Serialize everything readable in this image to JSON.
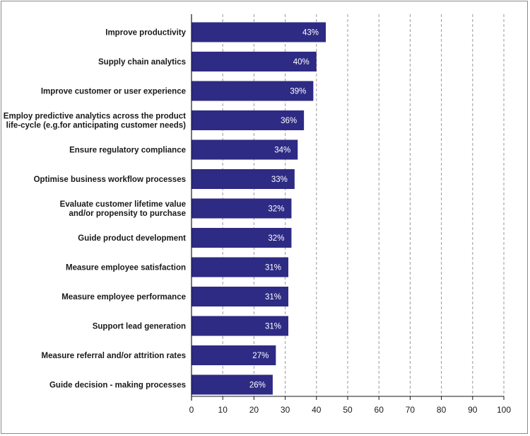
{
  "chart_data": {
    "type": "bar",
    "orientation": "horizontal",
    "title": "",
    "xlabel": "",
    "ylabel": "",
    "xlim": [
      0,
      100
    ],
    "x_ticks": [
      0,
      10,
      20,
      30,
      40,
      50,
      60,
      70,
      80,
      90,
      100
    ],
    "grid": "vertical dashed",
    "bar_color": "#2e2b85",
    "categories": [
      [
        "Improve productivity"
      ],
      [
        "Supply chain analytics"
      ],
      [
        "Improve customer or user experience"
      ],
      [
        "Employ predictive analytics across the product",
        "life-cycle (e.g.for anticipating customer needs)"
      ],
      [
        "Ensure regulatory compliance"
      ],
      [
        "Optimise business workflow processes"
      ],
      [
        "Evaluate customer lifetime value",
        "and/or propensity to purchase"
      ],
      [
        "Guide product development"
      ],
      [
        "Measure employee satisfaction"
      ],
      [
        "Measure employee performance"
      ],
      [
        "Support lead generation"
      ],
      [
        "Measure referral and/or attrition rates"
      ],
      [
        "Guide decision - making processes"
      ]
    ],
    "values": [
      43,
      40,
      39,
      36,
      34,
      33,
      32,
      32,
      31,
      31,
      31,
      27,
      26
    ],
    "value_labels": [
      "43%",
      "40%",
      "39%",
      "36%",
      "34%",
      "33%",
      "32%",
      "32%",
      "31%",
      "31%",
      "31%",
      "27%",
      "26%"
    ]
  }
}
